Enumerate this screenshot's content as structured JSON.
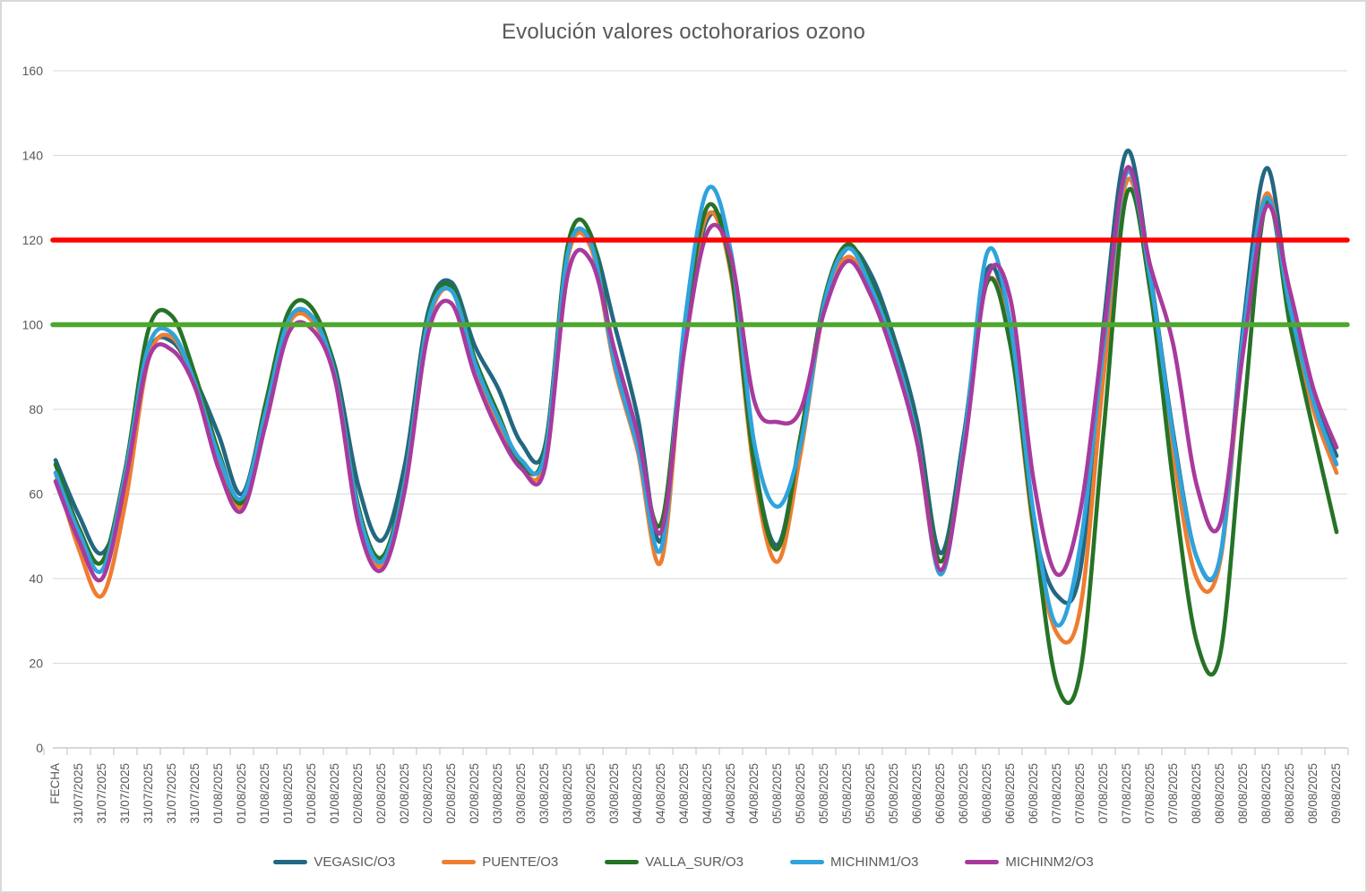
{
  "title": "Evolución valores octohorarios ozono",
  "colors": {
    "grid": "#D9D9D9",
    "axis": "#BFBFBF",
    "text": "#595959",
    "limit_red": "#FF0000",
    "limit_green": "#4EA72E"
  },
  "x_axis_first_label": "FECHA",
  "chart_data": {
    "type": "line",
    "title": "Evolución valores octohorarios ozono",
    "ylim": [
      0,
      160
    ],
    "y_ticks": [
      0,
      20,
      40,
      60,
      80,
      100,
      120,
      140,
      160
    ],
    "grid": true,
    "legend_position": "bottom",
    "smoothed_lines": true,
    "categories": [
      "FECHA",
      "31/07/2025",
      "31/07/2025",
      "31/07/2025",
      "31/07/2025",
      "31/07/2025",
      "31/07/2025",
      "01/08/2025",
      "01/08/2025",
      "01/08/2025",
      "01/08/2025",
      "01/08/2025",
      "01/08/2025",
      "02/08/2025",
      "02/08/2025",
      "02/08/2025",
      "02/08/2025",
      "02/08/2025",
      "02/08/2025",
      "03/08/2025",
      "03/08/2025",
      "03/08/2025",
      "03/08/2025",
      "03/08/2025",
      "03/08/2025",
      "04/08/2025",
      "04/08/2025",
      "04/08/2025",
      "04/08/2025",
      "04/08/2025",
      "04/08/2025",
      "05/08/2025",
      "05/08/2025",
      "05/08/2025",
      "05/08/2025",
      "05/08/2025",
      "05/08/2025",
      "06/08/2025",
      "06/08/2025",
      "06/08/2025",
      "06/08/2025",
      "06/08/2025",
      "06/08/2025",
      "07/08/2025",
      "07/08/2025",
      "07/08/2025",
      "07/08/2025",
      "07/08/2025",
      "07/08/2025",
      "08/08/2025",
      "08/08/2025",
      "08/08/2025",
      "08/08/2025",
      "08/08/2025",
      "08/08/2025",
      "09/08/2025"
    ],
    "reference_lines": [
      {
        "name": "limit-120",
        "value": 120,
        "color": "#FF0000"
      },
      {
        "name": "limit-100",
        "value": 100,
        "color": "#4EA72E"
      }
    ],
    "series": [
      {
        "name": "VEGASIC/O3",
        "color": "#236782",
        "values": [
          68,
          55,
          46,
          61,
          93,
          96,
          87,
          74,
          60,
          80,
          100,
          102,
          90,
          62,
          49,
          67,
          103,
          110,
          95,
          85,
          72,
          71,
          117,
          120,
          100,
          78,
          49,
          97,
          125,
          117,
          68,
          48,
          74,
          105,
          118,
          112,
          97,
          77,
          46,
          74,
          113,
          98,
          53,
          36,
          42,
          100,
          141,
          112,
          74,
          45,
          45,
          100,
          137,
          105,
          83,
          69
        ]
      },
      {
        "name": "PUENTE/O3",
        "color": "#EE7D31",
        "values": [
          65,
          47,
          36,
          58,
          92,
          97,
          86,
          68,
          57,
          78,
          100,
          101,
          88,
          55,
          43,
          62,
          100,
          108,
          90,
          77,
          66,
          68,
          116,
          118,
          90,
          70,
          44,
          97,
          126,
          112,
          65,
          44,
          70,
          104,
          116,
          108,
          93,
          72,
          41,
          71,
          110,
          96,
          51,
          27,
          33,
          88,
          134,
          110,
          69,
          40,
          44,
          96,
          131,
          103,
          80,
          65
        ]
      },
      {
        "name": "VALLA_SUR/O3",
        "color": "#267326",
        "values": [
          67,
          52,
          44,
          66,
          99,
          102,
          88,
          70,
          58,
          81,
          103,
          104,
          89,
          57,
          45,
          64,
          102,
          109,
          92,
          79,
          67,
          70,
          119,
          121,
          92,
          72,
          53,
          98,
          128,
          113,
          67,
          47,
          74,
          106,
          119,
          110,
          95,
          74,
          44,
          72,
          110,
          95,
          52,
          15,
          18,
          75,
          131,
          108,
          62,
          25,
          22,
          78,
          129,
          100,
          75,
          51
        ]
      },
      {
        "name": "MICHINM1/O3",
        "color": "#2FA3DC",
        "values": [
          65,
          51,
          42,
          65,
          95,
          98,
          86,
          69,
          59,
          79,
          101,
          102,
          88,
          56,
          44,
          63,
          101,
          108,
          91,
          78,
          68,
          69,
          117,
          119,
          91,
          71,
          47,
          100,
          132,
          117,
          72,
          57,
          72,
          105,
          118,
          109,
          94,
          73,
          41,
          72,
          117,
          100,
          55,
          29,
          48,
          95,
          136,
          111,
          73,
          45,
          45,
          98,
          130,
          104,
          82,
          67
        ]
      },
      {
        "name": "MICHINM2/O3",
        "color": "#A83A9D",
        "values": [
          63,
          49,
          40,
          63,
          92,
          94,
          85,
          66,
          56,
          76,
          98,
          99,
          87,
          53,
          42,
          61,
          98,
          105,
          88,
          75,
          66,
          66,
          112,
          115,
          94,
          74,
          51,
          94,
          122,
          116,
          82,
          77,
          80,
          103,
          115,
          107,
          92,
          72,
          42,
          70,
          111,
          106,
          63,
          41,
          56,
          98,
          137,
          114,
          95,
          62,
          53,
          94,
          128,
          108,
          85,
          71
        ]
      }
    ]
  }
}
